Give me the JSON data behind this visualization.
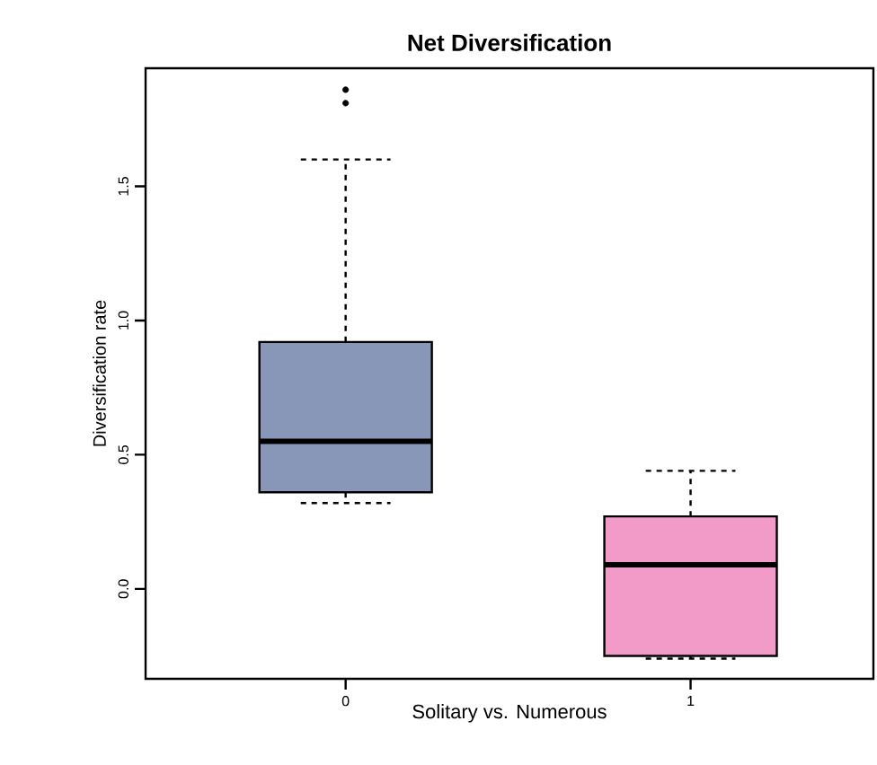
{
  "chart_data": {
    "type": "box",
    "title": "Net Diversification",
    "xlabel": "Solitary vs. Numerous",
    "ylabel": "Diversification rate",
    "categories": [
      "0",
      "1"
    ],
    "colors": [
      "#8896b8",
      "#f29bc9"
    ],
    "boxes": [
      {
        "low": 0.32,
        "q1": 0.36,
        "median": 0.55,
        "q3": 0.92,
        "high": 1.6,
        "outliers": [
          1.81,
          1.86
        ]
      },
      {
        "low": -0.26,
        "q1": -0.25,
        "median": 0.09,
        "q3": 0.27,
        "high": 0.44
      }
    ],
    "ylim": [
      -0.335,
      1.94
    ],
    "yticks": [
      {
        "value": 0,
        "label": "0.0"
      },
      0.5,
      {
        "value": 1,
        "label": "1.0"
      },
      1.5
    ],
    "grid": false
  }
}
